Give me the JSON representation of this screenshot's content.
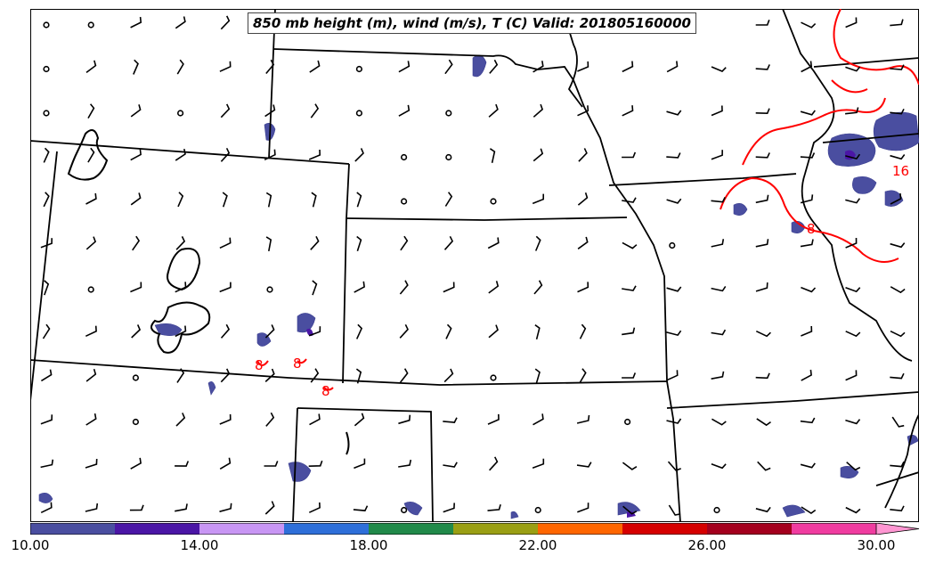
{
  "title": "850 mb height (m), wind (m/s), T (C) Valid: 201805160000",
  "colorbar": {
    "colors": [
      "#4a4ea0",
      "#4b16a6",
      "#c896f4",
      "#2e6fd9",
      "#218a4a",
      "#9a9f14",
      "#ff6600",
      "#d60000",
      "#a4001e",
      "#f03ca0",
      "#ff96d2"
    ],
    "ticks": [
      "10.00",
      "14.00",
      "18.00",
      "22.00",
      "26.00",
      "30.00"
    ]
  },
  "contour_labels": [
    "8",
    "8",
    "8",
    "16",
    "16",
    "8"
  ],
  "styles": {
    "temperature_contour": "#ff0000",
    "state_borders": "#000000",
    "wind_barbs": "#000000"
  }
}
